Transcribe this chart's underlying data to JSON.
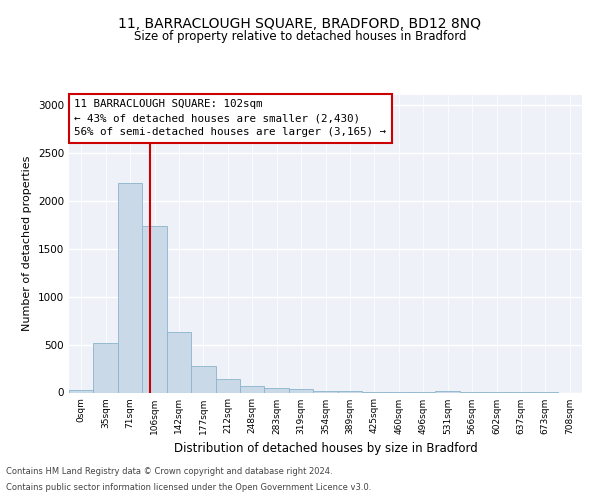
{
  "title1": "11, BARRACLOUGH SQUARE, BRADFORD, BD12 8NQ",
  "title2": "Size of property relative to detached houses in Bradford",
  "xlabel": "Distribution of detached houses by size in Bradford",
  "ylabel": "Number of detached properties",
  "bin_labels": [
    "0sqm",
    "35sqm",
    "71sqm",
    "106sqm",
    "142sqm",
    "177sqm",
    "212sqm",
    "248sqm",
    "283sqm",
    "319sqm",
    "354sqm",
    "389sqm",
    "425sqm",
    "460sqm",
    "496sqm",
    "531sqm",
    "566sqm",
    "602sqm",
    "637sqm",
    "673sqm",
    "708sqm"
  ],
  "bar_heights": [
    25,
    520,
    2185,
    1730,
    635,
    275,
    140,
    70,
    45,
    40,
    20,
    15,
    10,
    5,
    3,
    20,
    3,
    2,
    2,
    2,
    0
  ],
  "bar_color": "#c9d9e8",
  "bar_edge_color": "#8ab4cc",
  "vline_x": 2.83,
  "annotation_text": "11 BARRACLOUGH SQUARE: 102sqm\n← 43% of detached houses are smaller (2,430)\n56% of semi-detached houses are larger (3,165) →",
  "annotation_box_color": "white",
  "annotation_box_edge_color": "#cc0000",
  "vline_color": "#cc0000",
  "ylim": [
    0,
    3100
  ],
  "yticks": [
    0,
    500,
    1000,
    1500,
    2000,
    2500,
    3000
  ],
  "footer1": "Contains HM Land Registry data © Crown copyright and database right 2024.",
  "footer2": "Contains public sector information licensed under the Open Government Licence v3.0.",
  "bg_color": "#ffffff",
  "plot_bg_color": "#eef2f8"
}
